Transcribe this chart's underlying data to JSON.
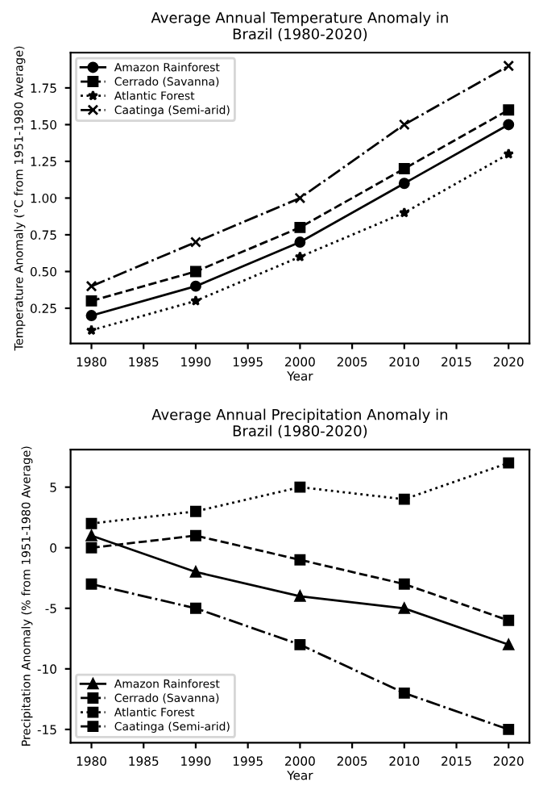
{
  "chart_data": [
    {
      "type": "line",
      "title": "Average Annual Temperature Anomaly in\nBrazil (1980-2020)",
      "xlabel": "Year",
      "ylabel": "Temperature Anomaly (°C from 1951-1980 Average)",
      "x": [
        1980,
        1990,
        2000,
        2010,
        2020
      ],
      "series": [
        {
          "name": "Amazon Rainforest",
          "color": "#000000",
          "marker": "circle",
          "line_style": "solid",
          "values": [
            0.2,
            0.4,
            0.7,
            1.1,
            1.5
          ]
        },
        {
          "name": "Cerrado (Savanna)",
          "color": "#000000",
          "marker": "square",
          "line_style": "dashed",
          "values": [
            0.3,
            0.5,
            0.8,
            1.2,
            1.6
          ]
        },
        {
          "name": "Atlantic Forest",
          "color": "#000000",
          "marker": "star",
          "line_style": "dotted",
          "values": [
            0.1,
            0.3,
            0.6,
            0.9,
            1.3
          ]
        },
        {
          "name": "Caatinga (Semi-arid)",
          "color": "#000000",
          "marker": "cross",
          "line_style": "dashdot",
          "values": [
            0.4,
            0.7,
            1.0,
            1.5,
            1.9
          ]
        }
      ],
      "xlim": [
        1978,
        2022
      ],
      "xticks": [
        1980,
        1985,
        1990,
        1995,
        2000,
        2005,
        2010,
        2015,
        2020
      ],
      "ylim": [
        0.01,
        1.99
      ],
      "yticks": [
        0.25,
        {
          "value": 0.5,
          "label": "0.50"
        },
        0.75,
        {
          "value": 1,
          "label": "1.00"
        },
        1.25,
        {
          "value": 1.5,
          "label": "1.50"
        },
        1.75
      ],
      "legend": "top left",
      "grid": false
    },
    {
      "type": "line",
      "title": "Average Annual Precipitation Anomaly in\nBrazil (1980-2020)",
      "xlabel": "Year",
      "ylabel": "Precipitation Anomaly (% from 1951-1980 Average)",
      "x": [
        1980,
        1990,
        2000,
        2010,
        2020
      ],
      "series": [
        {
          "name": "Amazon Rainforest",
          "color": "#000000",
          "marker": "triangle",
          "line_style": "solid",
          "values": [
            1,
            -2,
            -4,
            -5,
            -8
          ]
        },
        {
          "name": "Cerrado (Savanna)",
          "color": "#000000",
          "marker": "square",
          "line_style": "dashed",
          "values": [
            0,
            1,
            -1,
            -3,
            -6
          ]
        },
        {
          "name": "Atlantic Forest",
          "color": "#000000",
          "marker": "square",
          "line_style": "dotted",
          "values": [
            2,
            3,
            5,
            4,
            7
          ]
        },
        {
          "name": "Caatinga (Semi-arid)",
          "color": "#000000",
          "marker": "square",
          "line_style": "dashdot",
          "values": [
            -3,
            -5,
            -8,
            -12,
            -15
          ]
        }
      ],
      "xlim": [
        1978,
        2022
      ],
      "xticks": [
        1980,
        1985,
        1990,
        1995,
        2000,
        2005,
        2010,
        2015,
        2020
      ],
      "ylim": [
        -16.1,
        8.1
      ],
      "yticks": [
        -15,
        -10,
        -5,
        0,
        5
      ],
      "legend": "bottom left",
      "grid": false
    }
  ]
}
